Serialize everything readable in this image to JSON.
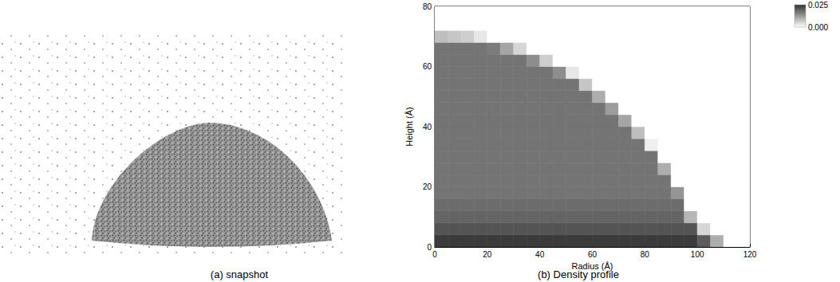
{
  "chart_data": [
    {
      "type": "snapshot",
      "caption": "(a) snapshot"
    },
    {
      "type": "heatmap",
      "caption": "(b) Density profile",
      "xlabel": "Radius (Å)",
      "ylabel": "Height (Å)",
      "xlim": [
        0,
        120
      ],
      "ylim": [
        0,
        80
      ],
      "xticks": [
        0,
        20,
        40,
        60,
        80,
        100,
        120
      ],
      "yticks": [
        0,
        20,
        40,
        60,
        80
      ],
      "x_bins": [
        0,
        5,
        10,
        15,
        20,
        25,
        30,
        35,
        40,
        45,
        50,
        55,
        60,
        65,
        70,
        75,
        80,
        85,
        90,
        95,
        100,
        105,
        110,
        115,
        120
      ],
      "y_bins": [
        0,
        4,
        8,
        12,
        16,
        20,
        24,
        28,
        32,
        36,
        40,
        44,
        48,
        52,
        56,
        60,
        64,
        68,
        72,
        76,
        80
      ],
      "cells": [
        [
          0.024,
          0.024,
          0.024,
          0.024,
          0.024,
          0.024,
          0.024,
          0.024,
          0.024,
          0.024,
          0.024,
          0.024,
          0.024,
          0.024,
          0.024,
          0.024,
          0.024,
          0.024,
          0.024,
          0.024,
          0.02,
          0.01,
          0,
          0
        ],
        [
          0.021,
          0.021,
          0.021,
          0.021,
          0.021,
          0.021,
          0.021,
          0.021,
          0.021,
          0.021,
          0.021,
          0.021,
          0.021,
          0.021,
          0.021,
          0.021,
          0.021,
          0.021,
          0.021,
          0.021,
          0.005,
          0,
          0,
          0
        ],
        [
          0.019,
          0.019,
          0.019,
          0.019,
          0.019,
          0.019,
          0.019,
          0.019,
          0.019,
          0.019,
          0.019,
          0.019,
          0.019,
          0.019,
          0.019,
          0.019,
          0.019,
          0.019,
          0.019,
          0.009,
          0,
          0,
          0,
          0
        ],
        [
          0.018,
          0.018,
          0.018,
          0.018,
          0.018,
          0.018,
          0.018,
          0.018,
          0.018,
          0.018,
          0.018,
          0.018,
          0.018,
          0.018,
          0.018,
          0.018,
          0.018,
          0.018,
          0.018,
          0,
          0,
          0,
          0,
          0
        ],
        [
          0.017,
          0.017,
          0.017,
          0.017,
          0.017,
          0.017,
          0.017,
          0.017,
          0.017,
          0.017,
          0.017,
          0.017,
          0.017,
          0.017,
          0.017,
          0.017,
          0.017,
          0.017,
          0.013,
          0,
          0,
          0,
          0,
          0
        ],
        [
          0.017,
          0.017,
          0.017,
          0.017,
          0.017,
          0.017,
          0.017,
          0.017,
          0.017,
          0.017,
          0.017,
          0.017,
          0.017,
          0.017,
          0.017,
          0.017,
          0.017,
          0.017,
          0,
          0,
          0,
          0,
          0,
          0
        ],
        [
          0.017,
          0.017,
          0.017,
          0.017,
          0.017,
          0.017,
          0.017,
          0.017,
          0.017,
          0.017,
          0.017,
          0.017,
          0.017,
          0.017,
          0.017,
          0.017,
          0.017,
          0.01,
          0,
          0,
          0,
          0,
          0,
          0
        ],
        [
          0.017,
          0.017,
          0.017,
          0.017,
          0.017,
          0.017,
          0.017,
          0.017,
          0.017,
          0.017,
          0.017,
          0.017,
          0.017,
          0.017,
          0.017,
          0.017,
          0.017,
          0,
          0,
          0,
          0,
          0,
          0,
          0
        ],
        [
          0.017,
          0.017,
          0.017,
          0.017,
          0.017,
          0.017,
          0.017,
          0.017,
          0.017,
          0.017,
          0.017,
          0.017,
          0.017,
          0.017,
          0.017,
          0.017,
          0.002,
          0,
          0,
          0,
          0,
          0,
          0,
          0
        ],
        [
          0.017,
          0.017,
          0.017,
          0.017,
          0.017,
          0.017,
          0.017,
          0.017,
          0.017,
          0.017,
          0.017,
          0.017,
          0.017,
          0.017,
          0.017,
          0.008,
          0,
          0,
          0,
          0,
          0,
          0,
          0,
          0
        ],
        [
          0.017,
          0.017,
          0.017,
          0.017,
          0.017,
          0.017,
          0.017,
          0.017,
          0.017,
          0.017,
          0.017,
          0.017,
          0.017,
          0.017,
          0.011,
          0,
          0,
          0,
          0,
          0,
          0,
          0,
          0,
          0
        ],
        [
          0.017,
          0.017,
          0.017,
          0.017,
          0.017,
          0.017,
          0.017,
          0.017,
          0.017,
          0.017,
          0.017,
          0.017,
          0.017,
          0.012,
          0,
          0,
          0,
          0,
          0,
          0,
          0,
          0,
          0,
          0
        ],
        [
          0.017,
          0.017,
          0.017,
          0.017,
          0.017,
          0.017,
          0.017,
          0.017,
          0.017,
          0.017,
          0.017,
          0.017,
          0.01,
          0,
          0,
          0,
          0,
          0,
          0,
          0,
          0,
          0,
          0,
          0
        ],
        [
          0.017,
          0.017,
          0.017,
          0.017,
          0.017,
          0.017,
          0.017,
          0.017,
          0.017,
          0.017,
          0.017,
          0.007,
          0,
          0,
          0,
          0,
          0,
          0,
          0,
          0,
          0,
          0,
          0,
          0
        ],
        [
          0.017,
          0.017,
          0.017,
          0.017,
          0.017,
          0.017,
          0.017,
          0.017,
          0.017,
          0.014,
          0.003,
          0,
          0,
          0,
          0,
          0,
          0,
          0,
          0,
          0,
          0,
          0,
          0,
          0
        ],
        [
          0.017,
          0.017,
          0.017,
          0.017,
          0.017,
          0.017,
          0.017,
          0.014,
          0.006,
          0,
          0,
          0,
          0,
          0,
          0,
          0,
          0,
          0,
          0,
          0,
          0,
          0,
          0,
          0
        ],
        [
          0.017,
          0.017,
          0.017,
          0.017,
          0.016,
          0.011,
          0.005,
          0,
          0,
          0,
          0,
          0,
          0,
          0,
          0,
          0,
          0,
          0,
          0,
          0,
          0,
          0,
          0,
          0
        ],
        [
          0.008,
          0.007,
          0.006,
          0.003,
          0,
          0,
          0,
          0,
          0,
          0,
          0,
          0,
          0,
          0,
          0,
          0,
          0,
          0,
          0,
          0,
          0,
          0,
          0,
          0
        ],
        [
          0,
          0,
          0,
          0,
          0,
          0,
          0,
          0,
          0,
          0,
          0,
          0,
          0,
          0,
          0,
          0,
          0,
          0,
          0,
          0,
          0,
          0,
          0,
          0
        ],
        [
          0,
          0,
          0,
          0,
          0,
          0,
          0,
          0,
          0,
          0,
          0,
          0,
          0,
          0,
          0,
          0,
          0,
          0,
          0,
          0,
          0,
          0,
          0,
          0
        ]
      ],
      "colorbar": {
        "range": [
          0,
          0.025
        ],
        "ticks": [
          {
            "value": 0.025,
            "label": "0.025"
          },
          {
            "value": 0,
            "label": "0.000"
          }
        ]
      }
    }
  ]
}
